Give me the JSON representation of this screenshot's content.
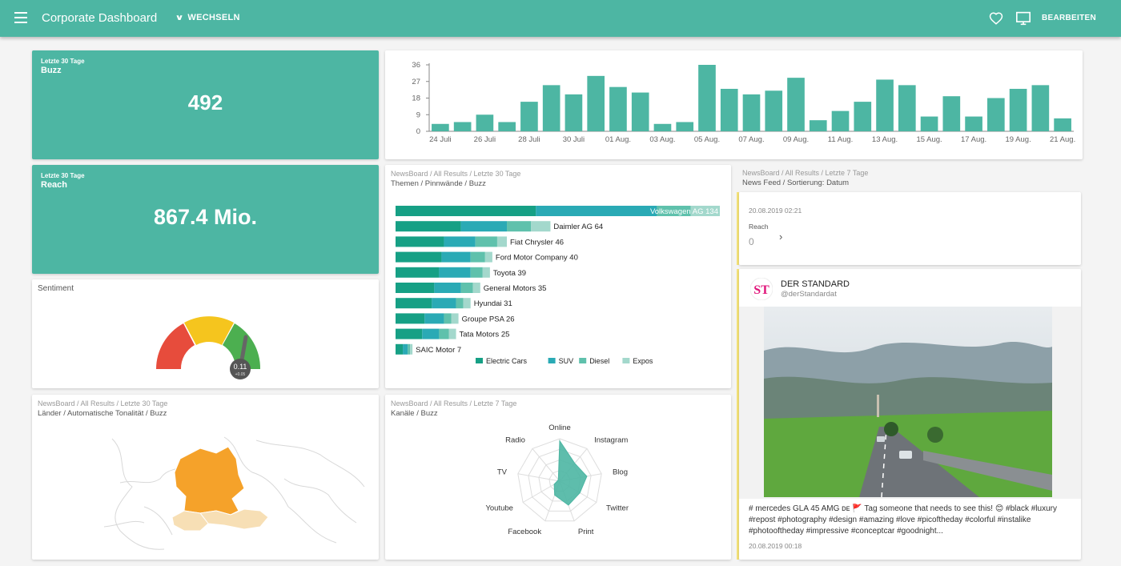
{
  "header": {
    "title": "Corporate Dashboard",
    "switch_label": "WECHSELN",
    "edit_label": "BEARBEITEN"
  },
  "kpi_buzz": {
    "period": "Letzte 30 Tage",
    "title": "Buzz",
    "value": "492"
  },
  "kpi_reach": {
    "period": "Letzte 30 Tage",
    "title": "Reach",
    "value": "867.4 Mio."
  },
  "sentiment": {
    "title": "Sentiment",
    "value": "0.11",
    "sub": "+0.05"
  },
  "buzz_chart": {
    "chart_data": {
      "type": "bar",
      "y_ticks": [
        "36",
        "27",
        "18",
        "9",
        "0"
      ],
      "ylim": [
        0,
        36
      ],
      "x_labels": [
        "24 Juli",
        "26 Juli",
        "28 Juli",
        "30 Juli",
        "01 Aug.",
        "03 Aug.",
        "05 Aug.",
        "07 Aug.",
        "09 Aug.",
        "11 Aug.",
        "13 Aug.",
        "15 Aug.",
        "17 Aug.",
        "19 Aug.",
        "21 Aug."
      ],
      "values": [
        4,
        5,
        9,
        5,
        16,
        25,
        20,
        30,
        24,
        21,
        4,
        5,
        36,
        23,
        20,
        22,
        29,
        6,
        11,
        16,
        28,
        25,
        8,
        19,
        8,
        18,
        23,
        25,
        7
      ],
      "color": "#4db6a3"
    }
  },
  "themes": {
    "breadcrumb": "NewsBoard / All Results / Letzte 30 Tage",
    "subtitle": "Themen / Pinnwände / Buzz",
    "chart_data": {
      "type": "bar",
      "orientation": "horizontal",
      "stacked": true,
      "categories": [
        "Volkswagen AG 134",
        "Daimler AG 64",
        "Fiat Chrysler 46",
        "Ford Motor Company 40",
        "Toyota 39",
        "General Motors 35",
        "Hyundai 31",
        "Groupe PSA 26",
        "Tata Motors 25",
        "SAIC Motor 7"
      ],
      "series": [
        {
          "name": "Electric Cars",
          "color": "#16a085",
          "values": [
            58,
            27,
            20,
            19,
            18,
            16,
            15,
            12,
            11,
            3
          ]
        },
        {
          "name": "SUV",
          "color": "#2aaab5",
          "values": [
            50,
            19,
            13,
            12,
            13,
            11,
            10,
            8,
            7,
            2
          ]
        },
        {
          "name": "Diesel",
          "color": "#5fc1ac",
          "values": [
            14,
            10,
            9,
            6,
            5,
            5,
            3,
            3,
            4,
            1
          ]
        },
        {
          "name": "Expos",
          "color": "#a3d8cc",
          "values": [
            12,
            8,
            4,
            3,
            3,
            3,
            3,
            3,
            3,
            1
          ]
        }
      ]
    }
  },
  "feed": {
    "breadcrumb": "NewsBoard / All Results / Letzte 7 Tage",
    "subtitle": "News Feed / Sortierung: Datum",
    "item1": {
      "date": "20.08.2019 02:21",
      "reach_label": "Reach",
      "reach_value": "0"
    },
    "post": {
      "author": "DER STANDARD",
      "handle": "@derStandardat",
      "text_line1": "# mercedes  GLA 45 AMG ᴅᴇ 🚩 Tag someone that needs to see this! 😊 #black #luxury",
      "text_line2": "#repost  #photography #design #amazing #love #picoftheday #colorful #instalike",
      "text_line3": "#photooftheday #impressive #conceptcar  #goodnight...",
      "date": "20.08.2019 00:18"
    }
  },
  "map": {
    "breadcrumb": "NewsBoard / All Results / Letzte 30 Tage",
    "subtitle": "Länder / Automatische Tonalität / Buzz"
  },
  "channels": {
    "breadcrumb": "NewsBoard / All Results / Letzte 7 Tage",
    "subtitle": "Kanäle / Buzz",
    "chart_data": {
      "type": "radar",
      "axes": [
        "Online",
        "Instagram",
        "Blog",
        "Twitter",
        "Print",
        "Facebook",
        "Youtube",
        "TV",
        "Radio"
      ],
      "values": [
        0.95,
        0.55,
        0.65,
        0.55,
        0.6,
        0.35,
        0.15,
        0.05,
        0.05
      ],
      "color": "#4db6a3"
    }
  }
}
